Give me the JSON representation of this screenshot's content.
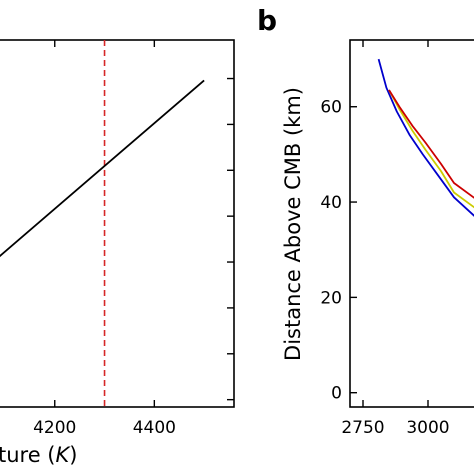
{
  "chart_data": [
    {
      "panel_label": "",
      "type": "line",
      "xlabel": "ture (K)",
      "xlabel_parts": {
        "text": "ture (",
        "var": "K",
        "close": ")"
      },
      "xlim": [
        4080,
        4560
      ],
      "x_ticks": [
        "4200",
        "4400"
      ],
      "x_tick_values": [
        4200,
        4400
      ],
      "ylim": [
        0,
        1
      ],
      "series": [
        {
          "color": "#000000",
          "x": [
            4080,
            4500
          ],
          "y": [
            0.4,
            0.89
          ]
        }
      ],
      "vline": {
        "x": 4300,
        "color": "#d62728",
        "style": "dashed"
      }
    },
    {
      "panel_label": "b",
      "type": "line",
      "xlabel": "",
      "ylabel": "Distance Above CMB (km)",
      "xlim": [
        2700,
        3200
      ],
      "ylim": [
        -3,
        74
      ],
      "x_ticks": [
        "2750",
        "3000"
      ],
      "x_tick_values": [
        2750,
        3000
      ],
      "y_ticks": [
        "0",
        "20",
        "40",
        "60"
      ],
      "y_tick_values": [
        0,
        20,
        40,
        60
      ],
      "series": [
        {
          "color": "#0000cc",
          "x": [
            2810,
            2840,
            2880,
            2930,
            2980,
            3040,
            3100,
            3200
          ],
          "y": [
            70,
            64,
            59,
            54,
            50,
            45.5,
            41,
            36
          ]
        },
        {
          "color": "#cccc00",
          "x": [
            2850,
            2890,
            2940,
            2990,
            3050,
            3100,
            3200
          ],
          "y": [
            63.5,
            59.5,
            55,
            51,
            46.5,
            42,
            38
          ]
        },
        {
          "color": "#cc0000",
          "x": [
            2850,
            2890,
            2940,
            2990,
            3050,
            3100,
            3200
          ],
          "y": [
            63.5,
            60,
            56,
            52.5,
            48,
            44,
            40
          ]
        }
      ]
    }
  ]
}
